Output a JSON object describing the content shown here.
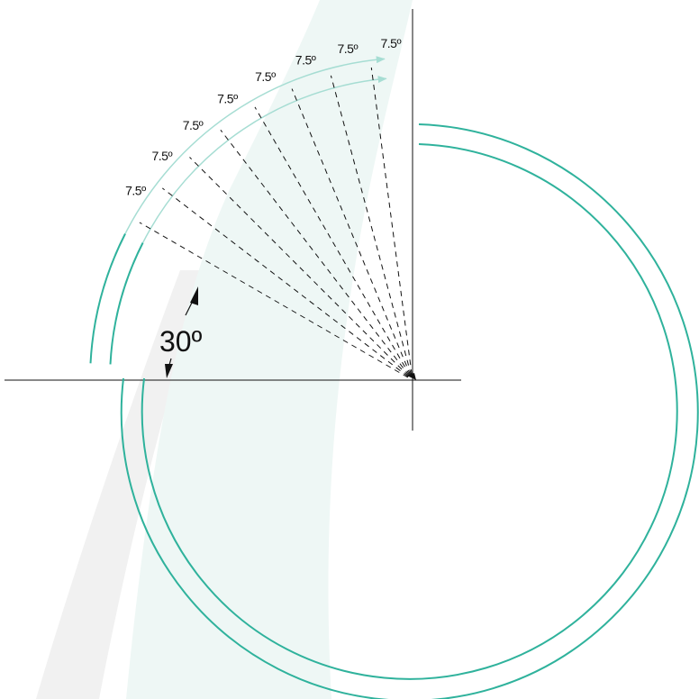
{
  "diagram": {
    "main_angle_label": "30º",
    "step_label": "7.5º",
    "step_count": 8,
    "step_degrees": 7.5,
    "lower_angle_degrees": 30,
    "colors": {
      "ring": "#2fb29c",
      "ring_light": "#a6ddd3",
      "band_teal": "#eef7f5",
      "band_gray": "#f1f1f1",
      "ink": "#111111"
    }
  }
}
